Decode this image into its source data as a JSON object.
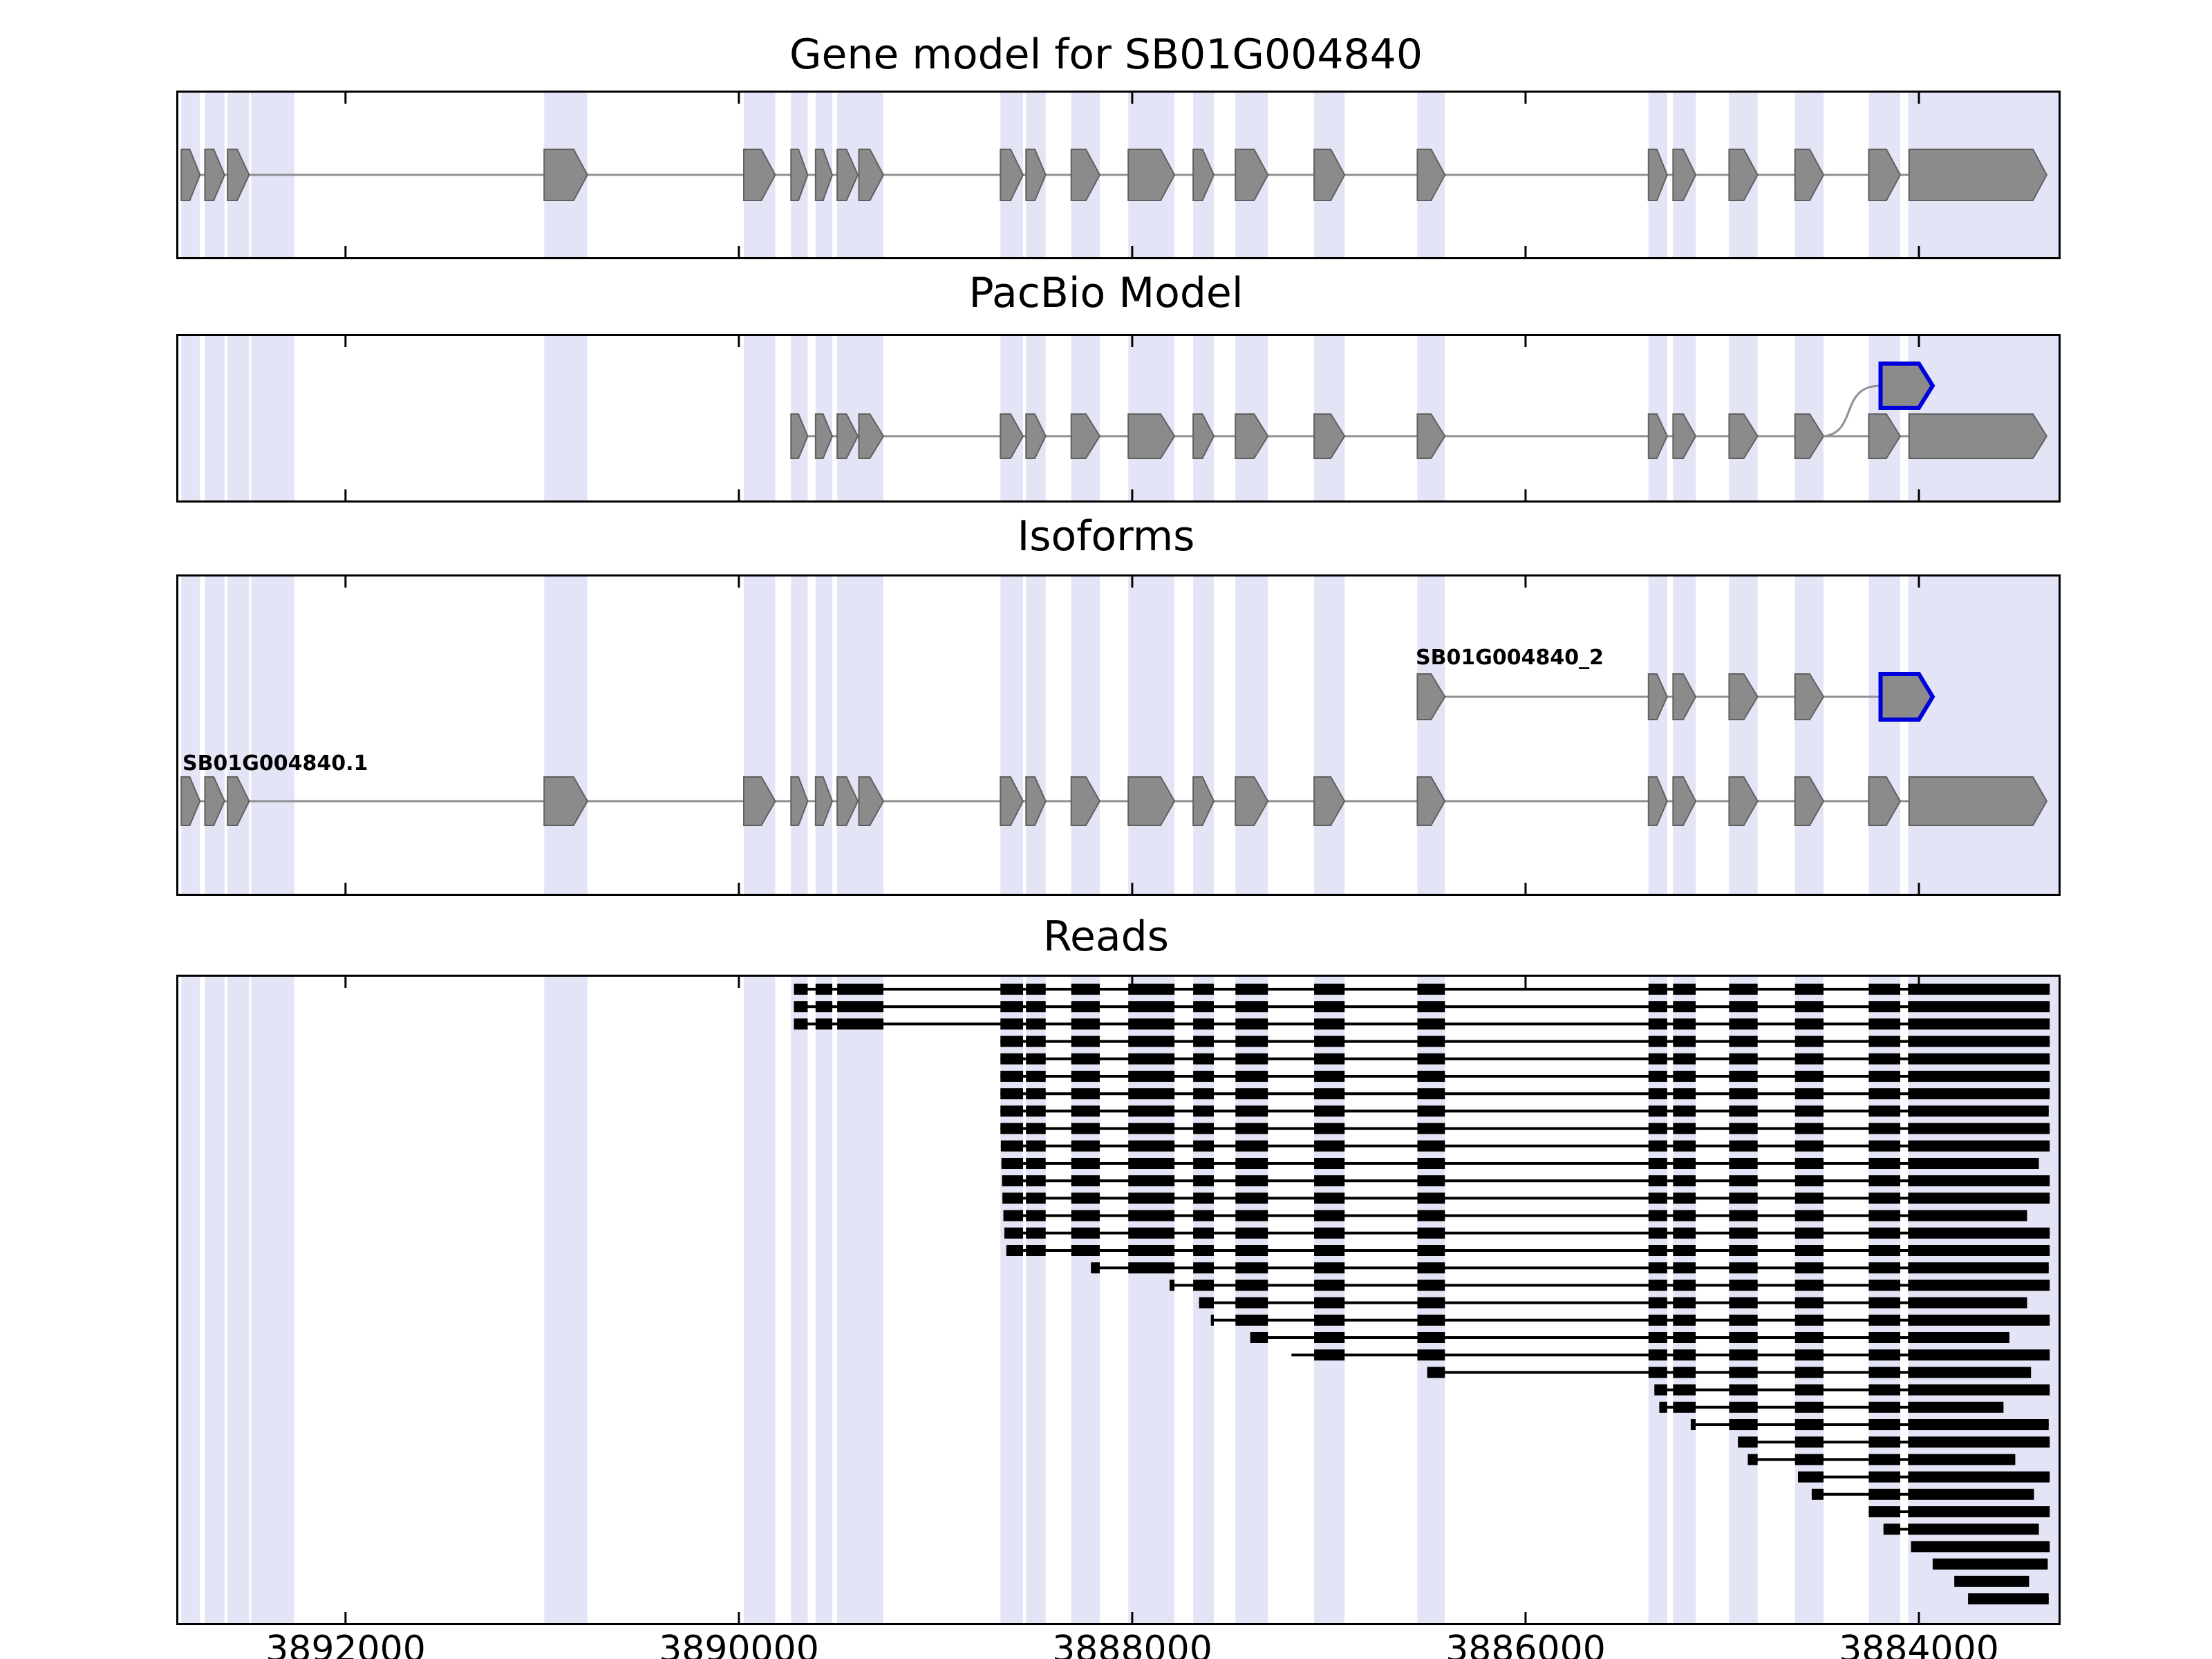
{
  "chart_data": {
    "type": "genome-browser",
    "title": "Gene model for SB01G004840",
    "x_axis": {
      "left_coord": 3892850,
      "right_coord": 3883290,
      "reversed": true,
      "ticks": [
        3892000,
        3890000,
        3888000,
        3886000,
        3884000
      ],
      "tick_labels": [
        "3892000",
        "3890000",
        "3888000",
        "3886000",
        "3884000"
      ]
    },
    "colors": {
      "stripe": "#e4e4f7",
      "exon_fill": "#8b8b8b",
      "exon_edge": "#606060",
      "highlight_edge": "#0000dd",
      "connector": "#909090",
      "read": "#000000"
    },
    "exon_stripes": [
      [
        3892835,
        3892740
      ],
      [
        3892715,
        3892615
      ],
      [
        3892600,
        3892490
      ],
      [
        3892480,
        3892260
      ],
      [
        3890990,
        3890770
      ],
      [
        3889975,
        3889815
      ],
      [
        3889735,
        3889650
      ],
      [
        3889610,
        3889525
      ],
      [
        3889500,
        3889265
      ],
      [
        3888670,
        3888555
      ],
      [
        3888540,
        3888440
      ],
      [
        3888310,
        3888165
      ],
      [
        3888020,
        3887785
      ],
      [
        3887690,
        3887585
      ],
      [
        3887475,
        3887310
      ],
      [
        3887075,
        3886920
      ],
      [
        3886550,
        3886410
      ],
      [
        3885375,
        3885280
      ],
      [
        3885250,
        3885135
      ],
      [
        3884965,
        3884820
      ],
      [
        3884630,
        3884485
      ],
      [
        3884255,
        3884095
      ],
      [
        3884055,
        3883290
      ]
    ],
    "tracks": [
      {
        "name": "gene_model",
        "title": "Gene model for SB01G004840",
        "transcripts": [
          {
            "id": "SB01G004840",
            "exons": [
              [
                3892835,
                3892740
              ],
              [
                3892715,
                3892615
              ],
              [
                3892600,
                3892490
              ],
              [
                3890990,
                3890770
              ],
              [
                3889975,
                3889815
              ],
              [
                3889735,
                3889650
              ],
              [
                3889610,
                3889525
              ],
              [
                3889500,
                3889395
              ],
              [
                3889390,
                3889265
              ],
              [
                3888670,
                3888555
              ],
              [
                3888540,
                3888440
              ],
              [
                3888310,
                3888165
              ],
              [
                3888020,
                3887785
              ],
              [
                3887690,
                3887585
              ],
              [
                3887475,
                3887310
              ],
              [
                3887075,
                3886920
              ],
              [
                3886550,
                3886410
              ],
              [
                3885375,
                3885280
              ],
              [
                3885250,
                3885135
              ],
              [
                3884965,
                3884820
              ],
              [
                3884630,
                3884485
              ],
              [
                3884255,
                3884095
              ],
              [
                3884050,
                3883350
              ]
            ]
          }
        ]
      },
      {
        "name": "pacbio_model",
        "title": "PacBio Model",
        "transcripts": [
          {
            "id": "PacBio",
            "exons": [
              [
                3889735,
                3889650
              ],
              [
                3889610,
                3889525
              ],
              [
                3889500,
                3889395
              ],
              [
                3889390,
                3889265
              ],
              [
                3888670,
                3888555
              ],
              [
                3888540,
                3888440
              ],
              [
                3888310,
                3888165
              ],
              [
                3888020,
                3887785
              ],
              [
                3887690,
                3887585
              ],
              [
                3887475,
                3887310
              ],
              [
                3887075,
                3886920
              ],
              [
                3886550,
                3886410
              ],
              [
                3885375,
                3885280
              ],
              [
                3885250,
                3885135
              ],
              [
                3884965,
                3884820
              ],
              [
                3884630,
                3884485
              ],
              [
                3884255,
                3884095
              ],
              [
                3884050,
                3883350
              ]
            ]
          }
        ],
        "novel_exon": {
          "exon": [
            3884195,
            3883930
          ],
          "connect_from": 3884485
        }
      },
      {
        "name": "isoforms",
        "title": "Isoforms",
        "transcripts": [
          {
            "id": "SB01G004840_2",
            "highlight_last_exon": true,
            "exons": [
              [
                3886550,
                3886410
              ],
              [
                3885375,
                3885280
              ],
              [
                3885250,
                3885135
              ],
              [
                3884965,
                3884820
              ],
              [
                3884630,
                3884485
              ],
              [
                3884195,
                3883930
              ]
            ]
          },
          {
            "id": "SB01G004840.1",
            "exons": [
              [
                3892835,
                3892740
              ],
              [
                3892715,
                3892615
              ],
              [
                3892600,
                3892490
              ],
              [
                3890990,
                3890770
              ],
              [
                3889975,
                3889815
              ],
              [
                3889735,
                3889650
              ],
              [
                3889610,
                3889525
              ],
              [
                3889500,
                3889395
              ],
              [
                3889390,
                3889265
              ],
              [
                3888670,
                3888555
              ],
              [
                3888540,
                3888440
              ],
              [
                3888310,
                3888165
              ],
              [
                3888020,
                3887785
              ],
              [
                3887690,
                3887585
              ],
              [
                3887475,
                3887310
              ],
              [
                3887075,
                3886920
              ],
              [
                3886550,
                3886410
              ],
              [
                3885375,
                3885280
              ],
              [
                3885250,
                3885135
              ],
              [
                3884965,
                3884820
              ],
              [
                3884630,
                3884485
              ],
              [
                3884255,
                3884095
              ],
              [
                3884050,
                3883350
              ]
            ]
          }
        ]
      },
      {
        "name": "reads",
        "title": "Reads",
        "reads": [
          [
            3889720,
            3883335
          ],
          [
            3889720,
            3883335
          ],
          [
            3889720,
            3883335
          ],
          [
            3888670,
            3883335
          ],
          [
            3888670,
            3883335
          ],
          [
            3888670,
            3883335
          ],
          [
            3888670,
            3883335
          ],
          [
            3888670,
            3883340
          ],
          [
            3888670,
            3883335
          ],
          [
            3888668,
            3883335
          ],
          [
            3888665,
            3883390
          ],
          [
            3888662,
            3883335
          ],
          [
            3888660,
            3883335
          ],
          [
            3888655,
            3883450
          ],
          [
            3888650,
            3883335
          ],
          [
            3888640,
            3883335
          ],
          [
            3888210,
            3883340
          ],
          [
            3887810,
            3883335
          ],
          [
            3887660,
            3883450
          ],
          [
            3887600,
            3883335
          ],
          [
            3887400,
            3883540
          ],
          [
            3887190,
            3883335
          ],
          [
            3886500,
            3883430
          ],
          [
            3885345,
            3883335
          ],
          [
            3885320,
            3883570
          ],
          [
            3885160,
            3883340
          ],
          [
            3884920,
            3883335
          ],
          [
            3884870,
            3883510
          ],
          [
            3884615,
            3883335
          ],
          [
            3884545,
            3883415
          ],
          [
            3884255,
            3883335
          ],
          [
            3884180,
            3883390
          ],
          [
            3884040,
            3883335
          ],
          [
            3883930,
            3883345
          ],
          [
            3883820,
            3883440
          ],
          [
            3883750,
            3883340
          ]
        ]
      }
    ]
  }
}
